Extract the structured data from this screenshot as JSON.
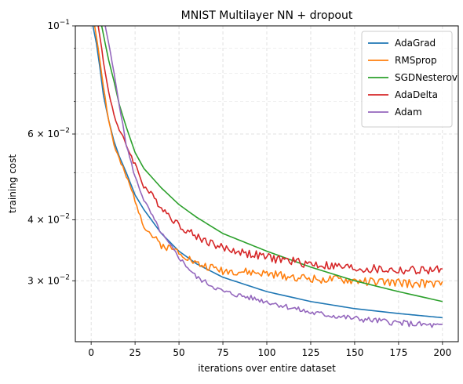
{
  "chart_data": {
    "type": "line",
    "title": "MNIST Multilayer NN + dropout",
    "xlabel": "iterations over entire dataset",
    "ylabel": "training cost",
    "xlim": [
      -9,
      209
    ],
    "ylim": [
      0.0225,
      0.1
    ],
    "y_scale": "log",
    "grid": true,
    "legend_position": "top-right",
    "x_ticks": [
      0,
      25,
      50,
      75,
      100,
      125,
      150,
      175,
      200
    ],
    "y_tick_labels": [
      {
        "value": 0.1,
        "mantissa": "",
        "base": "10",
        "exp": "−1"
      },
      {
        "value": 0.06,
        "mantissa": "6 × ",
        "base": "10",
        "exp": "−2"
      },
      {
        "value": 0.04,
        "mantissa": "4 × ",
        "base": "10",
        "exp": "−2"
      },
      {
        "value": 0.03,
        "mantissa": "3 × ",
        "base": "10",
        "exp": "−2"
      }
    ],
    "y_minor_ticks": [
      0.05,
      0.07,
      0.08,
      0.09
    ],
    "series": [
      {
        "name": "AdaGrad",
        "color": "#1f77b4",
        "noise": 0,
        "seed": 1,
        "x": [
          1,
          3,
          5,
          7,
          10,
          13,
          16,
          20,
          25,
          30,
          40,
          50,
          60,
          75,
          100,
          125,
          150,
          175,
          200
        ],
        "y": [
          0.1,
          0.092,
          0.082,
          0.072,
          0.064,
          0.058,
          0.054,
          0.05,
          0.045,
          0.042,
          0.0375,
          0.0345,
          0.0325,
          0.0305,
          0.0285,
          0.0272,
          0.0263,
          0.0257,
          0.0252
        ]
      },
      {
        "name": "RMSprop",
        "color": "#ff7f0e",
        "noise": 0.0006,
        "seed": 2,
        "x": [
          2,
          4,
          6,
          8,
          10,
          13,
          17,
          20,
          25,
          30,
          35,
          40,
          50,
          60,
          75,
          100,
          125,
          150,
          175,
          200
        ],
        "y": [
          0.1,
          0.09,
          0.08,
          0.071,
          0.064,
          0.057,
          0.052,
          0.049,
          0.044,
          0.039,
          0.037,
          0.0355,
          0.0345,
          0.0325,
          0.0315,
          0.031,
          0.0303,
          0.03,
          0.0297,
          0.0295
        ]
      },
      {
        "name": "SGDNesterov",
        "color": "#2ca02c",
        "noise": 0,
        "seed": 3,
        "x": [
          6,
          8,
          10,
          13,
          16,
          20,
          25,
          30,
          40,
          50,
          60,
          75,
          100,
          125,
          150,
          175,
          200
        ],
        "y": [
          0.1,
          0.092,
          0.085,
          0.077,
          0.069,
          0.062,
          0.055,
          0.051,
          0.0465,
          0.043,
          0.0405,
          0.0375,
          0.0345,
          0.032,
          0.03,
          0.0285,
          0.0272
        ]
      },
      {
        "name": "AdaDelta",
        "color": "#d62728",
        "noise": 0.0007,
        "seed": 4,
        "x": [
          4,
          6,
          8,
          10,
          13,
          16,
          20,
          25,
          30,
          40,
          50,
          60,
          75,
          100,
          125,
          150,
          175,
          200
        ],
        "y": [
          0.1,
          0.09,
          0.08,
          0.073,
          0.066,
          0.061,
          0.057,
          0.052,
          0.047,
          0.0425,
          0.039,
          0.037,
          0.035,
          0.0335,
          0.0325,
          0.0318,
          0.0315,
          0.0315
        ]
      },
      {
        "name": "Adam",
        "color": "#9467bd",
        "noise": 0.00035,
        "seed": 5,
        "x": [
          8,
          10,
          13,
          16,
          20,
          25,
          30,
          40,
          50,
          60,
          75,
          100,
          125,
          150,
          175,
          200
        ],
        "y": [
          0.1,
          0.092,
          0.08,
          0.069,
          0.057,
          0.049,
          0.044,
          0.0375,
          0.0335,
          0.0305,
          0.0285,
          0.0272,
          0.0258,
          0.0251,
          0.0246,
          0.0242
        ]
      }
    ]
  }
}
